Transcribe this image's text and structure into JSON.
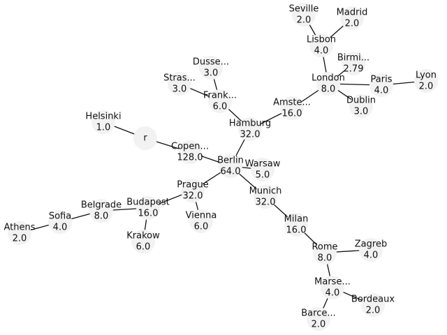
{
  "graph": {
    "nodes": [
      {
        "id": "r",
        "name": "r",
        "value": ""
      },
      {
        "id": "helsinki",
        "name": "Helsinki",
        "value": "1.0"
      },
      {
        "id": "copenhagen",
        "name": "Copen...",
        "value": "128.0"
      },
      {
        "id": "berlin",
        "name": "Berlin",
        "value": "64.0"
      },
      {
        "id": "hamburg",
        "name": "Hamburg",
        "value": "32.0"
      },
      {
        "id": "frankfurt",
        "name": "Frank...",
        "value": "6.0"
      },
      {
        "id": "dusseldorf",
        "name": "Dusse...",
        "value": "3.0"
      },
      {
        "id": "strasbourg",
        "name": "Stras...",
        "value": "3.0"
      },
      {
        "id": "amsterdam",
        "name": "Amste...",
        "value": "16.0"
      },
      {
        "id": "london",
        "name": "London",
        "value": "8.0"
      },
      {
        "id": "lisbon",
        "name": "Lisbon",
        "value": "4.0"
      },
      {
        "id": "seville",
        "name": "Seville",
        "value": "2.0"
      },
      {
        "id": "madrid",
        "name": "Madrid",
        "value": "2.0"
      },
      {
        "id": "birmingham",
        "name": "Birmi...",
        "value": "2.79"
      },
      {
        "id": "paris",
        "name": "Paris",
        "value": "4.0"
      },
      {
        "id": "lyon",
        "name": "Lyon",
        "value": "2.0"
      },
      {
        "id": "dublin",
        "name": "Dublin",
        "value": "3.0"
      },
      {
        "id": "warsaw",
        "name": "Warsaw",
        "value": "5.0"
      },
      {
        "id": "prague",
        "name": "Prague",
        "value": "32.0"
      },
      {
        "id": "vienna",
        "name": "Vienna",
        "value": "6.0"
      },
      {
        "id": "budapest",
        "name": "Budapest",
        "value": "16.0"
      },
      {
        "id": "krakow",
        "name": "Krakow",
        "value": "6.0"
      },
      {
        "id": "belgrade",
        "name": "Belgrade",
        "value": "8.0"
      },
      {
        "id": "sofia",
        "name": "Sofia",
        "value": "4.0"
      },
      {
        "id": "athens",
        "name": "Athens",
        "value": "2.0"
      },
      {
        "id": "munich",
        "name": "Munich",
        "value": "32.0"
      },
      {
        "id": "milan",
        "name": "Milan",
        "value": "16.0"
      },
      {
        "id": "rome",
        "name": "Rome",
        "value": "8.0"
      },
      {
        "id": "zagreb",
        "name": "Zagreb",
        "value": "4.0"
      },
      {
        "id": "marseille",
        "name": "Marse...",
        "value": "4.0"
      },
      {
        "id": "bordeaux",
        "name": "Bordeaux",
        "value": "2.0"
      },
      {
        "id": "barcelona",
        "name": "Barce...",
        "value": "2.0"
      }
    ],
    "edges": [
      [
        "r",
        "helsinki"
      ],
      [
        "r",
        "copenhagen"
      ],
      [
        "copenhagen",
        "berlin"
      ],
      [
        "berlin",
        "hamburg"
      ],
      [
        "hamburg",
        "frankfurt"
      ],
      [
        "frankfurt",
        "dusseldorf"
      ],
      [
        "frankfurt",
        "strasbourg"
      ],
      [
        "hamburg",
        "amsterdam"
      ],
      [
        "amsterdam",
        "london"
      ],
      [
        "london",
        "lisbon"
      ],
      [
        "lisbon",
        "seville"
      ],
      [
        "lisbon",
        "madrid"
      ],
      [
        "london",
        "birmingham"
      ],
      [
        "london",
        "paris"
      ],
      [
        "paris",
        "lyon"
      ],
      [
        "london",
        "dublin"
      ],
      [
        "berlin",
        "warsaw"
      ],
      [
        "berlin",
        "prague"
      ],
      [
        "prague",
        "vienna"
      ],
      [
        "prague",
        "budapest"
      ],
      [
        "budapest",
        "krakow"
      ],
      [
        "budapest",
        "belgrade"
      ],
      [
        "belgrade",
        "sofia"
      ],
      [
        "sofia",
        "athens"
      ],
      [
        "berlin",
        "munich"
      ],
      [
        "munich",
        "milan"
      ],
      [
        "milan",
        "rome"
      ],
      [
        "rome",
        "zagreb"
      ],
      [
        "rome",
        "marseille"
      ],
      [
        "marseille",
        "bordeaux"
      ],
      [
        "marseille",
        "barcelona"
      ]
    ]
  }
}
